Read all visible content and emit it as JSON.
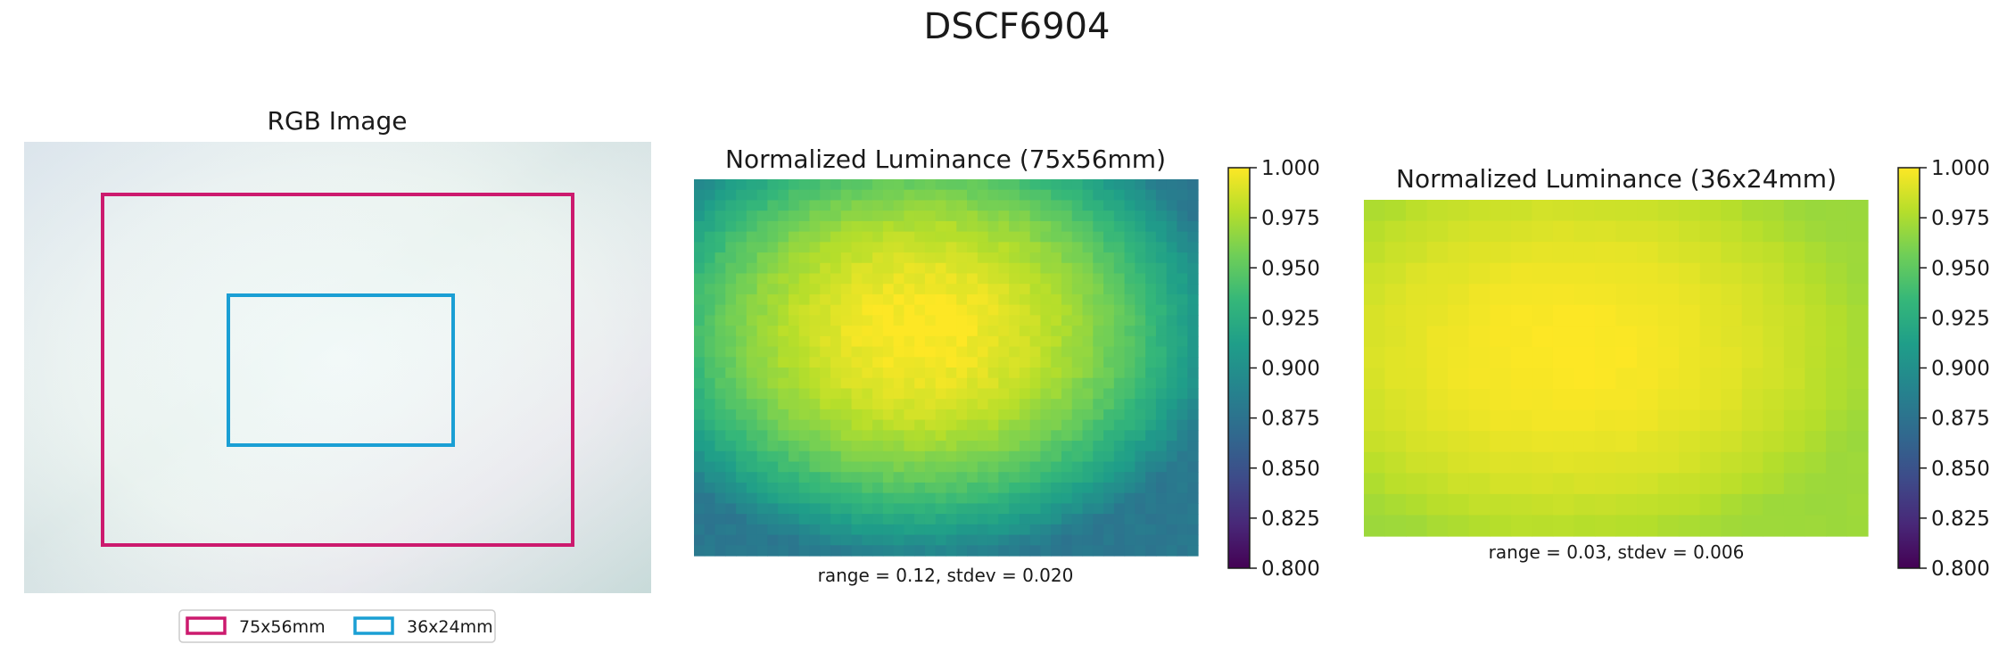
{
  "figure": {
    "title": "DSCF6904"
  },
  "chart_data": [
    {
      "type": "image",
      "title": "RGB Image",
      "overlays": [
        {
          "name": "75x56mm",
          "color": "#cc1a6e"
        },
        {
          "name": "36x24mm",
          "color": "#1a9fd4"
        }
      ],
      "legend": {
        "placement": "bottom-center"
      }
    },
    {
      "type": "heatmap",
      "title": "Normalized Luminance (75x56mm)",
      "caption": "range = 0.12, stdev = 0.020",
      "grid": {
        "cols": 48,
        "rows": 36
      },
      "center": [
        0.45,
        0.4
      ],
      "value_max": 1.0,
      "value_min": 0.88,
      "colorbar": {
        "vmin": 0.8,
        "vmax": 1.0,
        "ticks": [
          "0.800",
          "0.825",
          "0.850",
          "0.875",
          "0.900",
          "0.925",
          "0.950",
          "0.975",
          "1.000"
        ]
      }
    },
    {
      "type": "heatmap",
      "title": "Normalized Luminance (36x24mm)",
      "caption": "range = 0.03, stdev = 0.006",
      "grid": {
        "cols": 24,
        "rows": 16
      },
      "center": [
        0.4,
        0.45
      ],
      "value_max": 1.0,
      "value_min": 0.97,
      "colorbar": {
        "vmin": 0.8,
        "vmax": 1.0,
        "ticks": [
          "0.800",
          "0.825",
          "0.850",
          "0.875",
          "0.900",
          "0.925",
          "0.950",
          "0.975",
          "1.000"
        ]
      }
    }
  ],
  "colormap": {
    "name": "viridis",
    "stops": [
      "#440154",
      "#482878",
      "#3e4a89",
      "#31688e",
      "#26828e",
      "#1f9e89",
      "#35b779",
      "#6ece58",
      "#b5de2b",
      "#fde725"
    ]
  }
}
